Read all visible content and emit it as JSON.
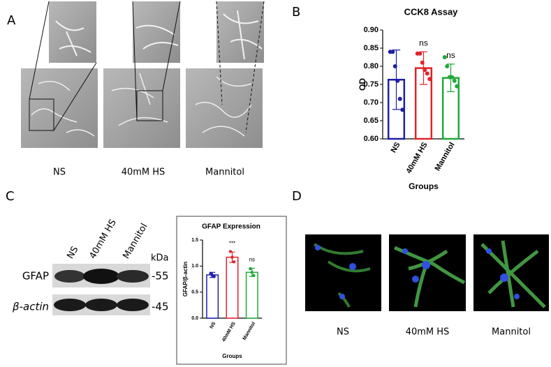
{
  "panel_labels": {
    "a": "A",
    "b": "B",
    "c": "C",
    "d": "D"
  },
  "micrographs": {
    "labels": [
      "NS",
      "40mM HS",
      "Mannitol"
    ]
  },
  "blot": {
    "lanes": [
      "NS",
      "40mM HS",
      "Mannitol"
    ],
    "unit": "kDa",
    "rows": [
      {
        "protein": "GFAP",
        "marker": "-55"
      },
      {
        "protein": "β-actin",
        "marker": "-45"
      }
    ]
  },
  "fluorescence": {
    "labels": [
      "NS",
      "40mM HS",
      "Mannitol"
    ]
  },
  "chart_data": [
    {
      "type": "bar",
      "title": "CCK8 Assay",
      "ylabel": "OD",
      "xlabel": "Groups",
      "categories": [
        "NS",
        "40mM HS",
        "Mannitol"
      ],
      "colors": [
        "#1f1fa8",
        "#e0242c",
        "#22a83a"
      ],
      "values": [
        0.763,
        0.795,
        0.768
      ],
      "errors": [
        0.082,
        0.045,
        0.038
      ],
      "points": [
        [
          0.84,
          0.84,
          0.8,
          0.76,
          0.71,
          0.68
        ],
        [
          0.835,
          0.835,
          0.81,
          0.79,
          0.78,
          0.765
        ],
        [
          0.825,
          0.8,
          0.77,
          0.77,
          0.76,
          0.745
        ]
      ],
      "annotations": [
        null,
        "ns",
        "ns"
      ],
      "ylim": [
        0.6,
        0.9
      ],
      "yticks": [
        {
          "value": 0.6,
          "label": "0.60"
        },
        0.65,
        {
          "value": 0.7,
          "label": "0.70"
        },
        0.75,
        {
          "value": 0.8,
          "label": "0.80"
        },
        0.85,
        {
          "value": 0.9,
          "label": "0.90"
        }
      ]
    },
    {
      "type": "bar",
      "title": "GFAP Expression",
      "ylabel": "GFAP/β-actin",
      "xlabel": "Groups",
      "categories": [
        "NS",
        "40mM HS",
        "Mannitol"
      ],
      "colors": [
        "#1f1fa8",
        "#e0242c",
        "#22a83a"
      ],
      "values": [
        0.83,
        1.17,
        0.88
      ],
      "errors": [
        0.05,
        0.1,
        0.08
      ],
      "points": [
        [
          0.86,
          0.82,
          0.8
        ],
        [
          1.28,
          1.17,
          1.08
        ],
        [
          0.95,
          0.88,
          0.82
        ]
      ],
      "annotations": [
        null,
        "***",
        "ns"
      ],
      "ylim": [
        0,
        1.5
      ],
      "yticks": [
        {
          "value": 0,
          "label": "0.0"
        },
        0.5,
        {
          "value": 1,
          "label": "1.0"
        },
        1.5
      ]
    }
  ]
}
